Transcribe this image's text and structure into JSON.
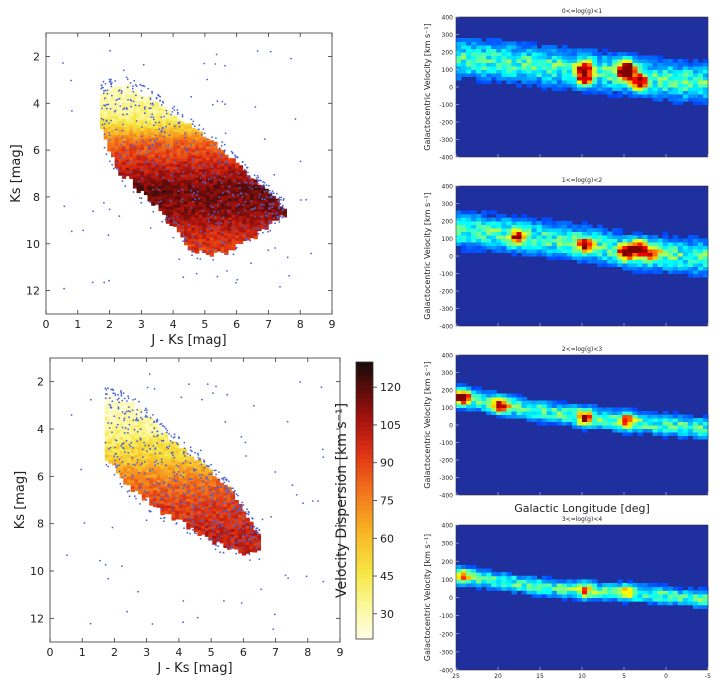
{
  "chart_data": [
    {
      "id": "cmd_top",
      "type": "heatmap",
      "xlabel": "J - Ks [mag]",
      "ylabel": "Ks [mag]",
      "xlim": [
        0,
        9
      ],
      "ylim": [
        13,
        1
      ],
      "xticks": [
        0,
        1,
        2,
        3,
        4,
        5,
        6,
        7,
        8,
        9
      ],
      "yticks": [
        2,
        4,
        6,
        8,
        10,
        12
      ],
      "value_range": [
        20,
        130
      ],
      "description_region": {
        "upper_edge": [
          [
            1.7,
            3.5
          ],
          [
            2.5,
            3.2
          ],
          [
            3.5,
            4.0
          ],
          [
            4.5,
            5.0
          ],
          [
            5.5,
            6.0
          ],
          [
            6.5,
            7.3
          ],
          [
            7.5,
            8.5
          ]
        ],
        "lower_edge": [
          [
            1.7,
            5.1
          ],
          [
            2.2,
            6.8
          ],
          [
            3.0,
            7.8
          ],
          [
            3.8,
            9.0
          ],
          [
            4.5,
            10.2
          ],
          [
            5.5,
            10.4
          ],
          [
            6.5,
            9.6
          ],
          [
            7.5,
            8.6
          ]
        ],
        "value_stops": [
          [
            3.2,
            26
          ],
          [
            4.6,
            40
          ],
          [
            5.6,
            82
          ],
          [
            6.6,
            100
          ],
          [
            7.6,
            118
          ],
          [
            8.6,
            112
          ],
          [
            9.6,
            98
          ],
          [
            10.4,
            92
          ]
        ]
      },
      "scatter": "blue points overlaid (star sample)"
    },
    {
      "id": "cmd_bottom",
      "type": "heatmap",
      "xlabel": "J - Ks [mag]",
      "ylabel": "Ks [mag]",
      "xlim": [
        0,
        9
      ],
      "ylim": [
        13,
        1
      ],
      "xticks": [
        0,
        1,
        2,
        3,
        4,
        5,
        6,
        7,
        8,
        9
      ],
      "yticks": [
        2,
        4,
        6,
        8,
        10,
        12
      ],
      "value_range": [
        20,
        130
      ],
      "description_region": {
        "upper_edge": [
          [
            1.7,
            2.6
          ],
          [
            2.5,
            2.9
          ],
          [
            3.5,
            4.2
          ],
          [
            4.5,
            5.3
          ],
          [
            5.5,
            6.5
          ],
          [
            6.5,
            8.6
          ]
        ],
        "lower_edge": [
          [
            1.7,
            5.2
          ],
          [
            2.5,
            6.5
          ],
          [
            3.5,
            7.5
          ],
          [
            4.5,
            8.3
          ],
          [
            5.5,
            9.0
          ],
          [
            6.5,
            9.2
          ]
        ],
        "value_stops": [
          [
            2.6,
            24
          ],
          [
            4.0,
            36
          ],
          [
            5.3,
            58
          ],
          [
            6.2,
            80
          ],
          [
            7.2,
            92
          ],
          [
            8.2,
            100
          ],
          [
            9.2,
            102
          ]
        ]
      },
      "scatter": "blue points overlaid (star sample)"
    },
    {
      "id": "colorbar",
      "type": "colorbar",
      "label": "Velocity Dispersion [km s⁻¹]",
      "ticks": [
        30,
        45,
        60,
        75,
        90,
        105,
        120
      ],
      "range": [
        20,
        130
      ]
    },
    {
      "id": "lg01",
      "type": "heatmap",
      "title": "0<=log(g)<1",
      "ylabel": "Galactocentric Velocity [km s⁻¹]",
      "xlim": [
        25,
        -5
      ],
      "ylim": [
        -400,
        400
      ],
      "yticks": [
        -400,
        -300,
        -200,
        -100,
        0,
        100,
        200,
        300,
        400
      ],
      "xticks": [
        25,
        20,
        15,
        10,
        5,
        0,
        -5
      ],
      "show_xticklabels": false,
      "ridge": [
        [
          25,
          150
        ],
        [
          20,
          140
        ],
        [
          15,
          110
        ],
        [
          10,
          90
        ],
        [
          5,
          60
        ],
        [
          0,
          30
        ],
        [
          -5,
          10
        ]
      ],
      "spread": 100,
      "hotspots": [
        [
          10,
          100,
          0.8
        ],
        [
          10,
          40,
          0.9
        ],
        [
          5,
          70,
          1.0
        ],
        [
          3.5,
          20,
          0.95
        ],
        [
          5,
          110,
          0.8
        ]
      ]
    },
    {
      "id": "lg12",
      "type": "heatmap",
      "title": "1<=log(g)<2",
      "ylabel": "Galactocentric Velocity [km s⁻¹]",
      "xlim": [
        25,
        -5
      ],
      "ylim": [
        -400,
        400
      ],
      "yticks": [
        -400,
        -300,
        -200,
        -100,
        0,
        100,
        200,
        300,
        400
      ],
      "xticks": [
        25,
        20,
        15,
        10,
        5,
        0,
        -5
      ],
      "show_xticklabels": false,
      "ridge": [
        [
          25,
          140
        ],
        [
          20,
          120
        ],
        [
          15,
          90
        ],
        [
          10,
          60
        ],
        [
          5,
          20
        ],
        [
          0,
          0
        ],
        [
          -5,
          -20
        ]
      ],
      "spread": 90,
      "hotspots": [
        [
          18,
          100,
          0.75
        ],
        [
          10,
          50,
          0.8
        ],
        [
          5,
          10,
          1.0
        ],
        [
          3.5,
          40,
          0.95
        ],
        [
          2,
          0,
          0.7
        ]
      ]
    },
    {
      "id": "lg23",
      "type": "heatmap",
      "title": "2<=log(g)<3",
      "ylabel": "Galactocentric Velocity [km s⁻¹]",
      "xlabel": "Galactic Longitude [deg]",
      "xlim": [
        25,
        -5
      ],
      "ylim": [
        -400,
        400
      ],
      "yticks": [
        -400,
        -300,
        -200,
        -100,
        0,
        100,
        200,
        300,
        400
      ],
      "xticks": [
        25,
        20,
        15,
        10,
        5,
        0,
        -5
      ],
      "show_xticklabels": false,
      "ridge": [
        [
          25,
          150
        ],
        [
          20,
          110
        ],
        [
          15,
          70
        ],
        [
          10,
          40
        ],
        [
          5,
          10
        ],
        [
          0,
          -10
        ],
        [
          -5,
          -30
        ]
      ],
      "spread": 55,
      "hotspots": [
        [
          24.5,
          150,
          1.0
        ],
        [
          20,
          100,
          0.85
        ],
        [
          10,
          30,
          0.8
        ],
        [
          5,
          20,
          0.7
        ]
      ]
    },
    {
      "id": "lg34",
      "type": "heatmap",
      "title": "3<=log(g)<4",
      "ylabel": "Galactocentric Velocity [km s⁻¹]",
      "xlim": [
        25,
        -5
      ],
      "ylim": [
        -400,
        400
      ],
      "yticks": [
        -400,
        -300,
        -200,
        -100,
        0,
        100,
        200,
        300,
        400
      ],
      "xticks": [
        25,
        20,
        15,
        10,
        5,
        0,
        -5
      ],
      "show_xticklabels": true,
      "ridge": [
        [
          25,
          110
        ],
        [
          20,
          80
        ],
        [
          15,
          50
        ],
        [
          10,
          30
        ],
        [
          5,
          20
        ],
        [
          0,
          0
        ],
        [
          -5,
          -20
        ]
      ],
      "spread": 45,
      "hotspots": [
        [
          24.5,
          110,
          0.45
        ],
        [
          10,
          30,
          0.45
        ],
        [
          5,
          20,
          0.4
        ]
      ]
    }
  ]
}
